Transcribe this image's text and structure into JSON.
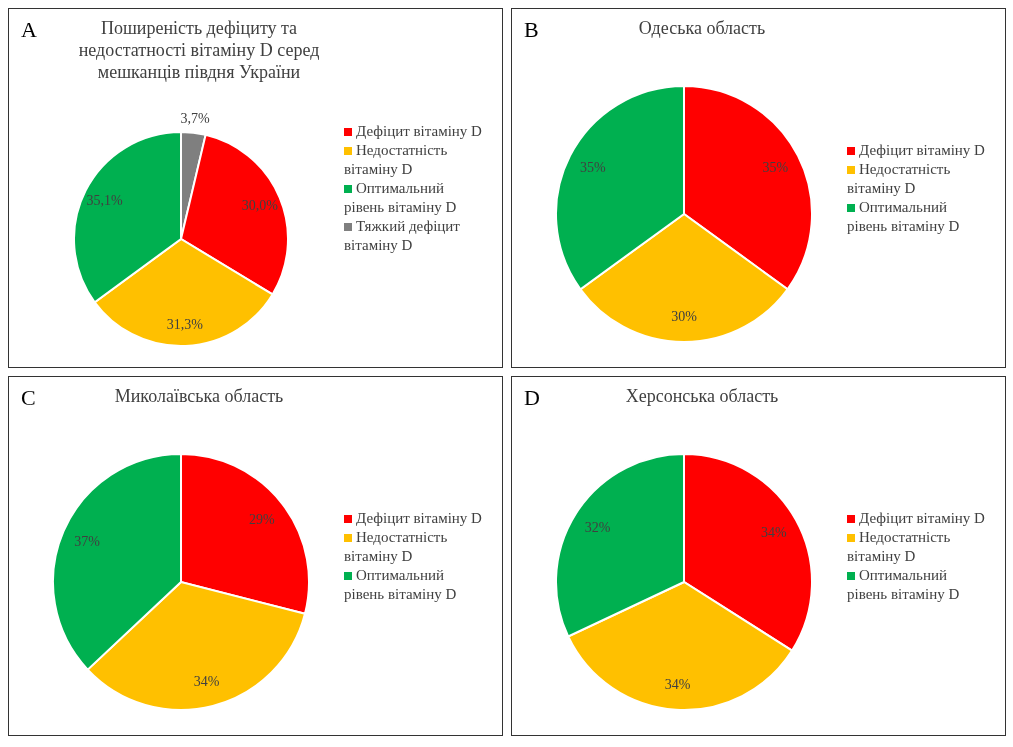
{
  "chart_data": [
    {
      "type": "pie",
      "title": "Поширеність дефіциту та недостатності вітаміну D серед мешканців півдня України",
      "annotations": [
        "A"
      ],
      "legend": "right",
      "categories": [
        "Тяжкий дефіцит вітаміну D",
        "Дефіцит вітаміну D",
        "Недостатність вітаміну D",
        "Оптимальний рівень вітаміну D"
      ],
      "values": [
        3.7,
        30.0,
        31.3,
        35.1
      ],
      "value_labels": [
        "3,7%",
        "30,0%",
        "31,3%",
        "35,1%"
      ],
      "colors": [
        "#7f7f7f",
        "#ff0000",
        "#ffc000",
        "#00b050"
      ]
    },
    {
      "type": "pie",
      "title": "Одеська область",
      "annotations": [
        "B"
      ],
      "legend": "right",
      "categories": [
        "Дефіцит вітаміну D",
        "Недостатність вітаміну D",
        "Оптимальний рівень вітаміну D"
      ],
      "values": [
        35,
        30,
        35
      ],
      "value_labels": [
        "35%",
        "30%",
        "35%"
      ],
      "colors": [
        "#ff0000",
        "#ffc000",
        "#00b050"
      ]
    },
    {
      "type": "pie",
      "title": "Миколаївська область",
      "annotations": [
        "C"
      ],
      "legend": "right",
      "categories": [
        "Дефіцит вітаміну D",
        "Недостатність вітаміну D",
        "Оптимальний рівень вітаміну D"
      ],
      "values": [
        29,
        34,
        37
      ],
      "value_labels": [
        "29%",
        "34%",
        "37%"
      ],
      "colors": [
        "#ff0000",
        "#ffc000",
        "#00b050"
      ]
    },
    {
      "type": "pie",
      "title": "Херсонська область",
      "annotations": [
        "D"
      ],
      "legend": "right",
      "categories": [
        "Дефіцит вітаміну D",
        "Недостатність вітаміну D",
        "Оптимальний рівень вітаміну D"
      ],
      "values": [
        34,
        34,
        32
      ],
      "value_labels": [
        "34%",
        "34%",
        "32%"
      ],
      "colors": [
        "#ff0000",
        "#ffc000",
        "#00b050"
      ]
    }
  ]
}
